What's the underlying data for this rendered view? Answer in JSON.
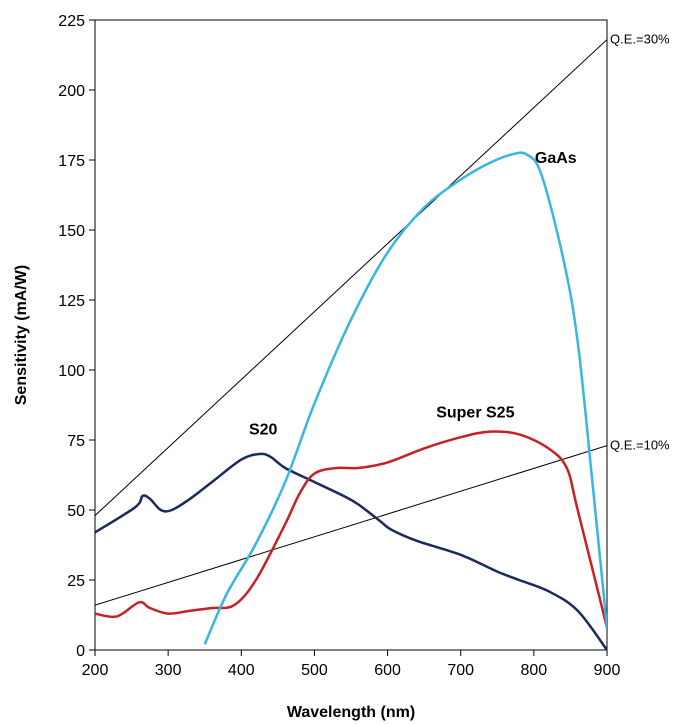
{
  "chart_data": {
    "type": "line",
    "title": "",
    "xlabel": "Wavelength (nm)",
    "ylabel": "Sensitivity (mA/W)",
    "xlim": [
      200,
      900
    ],
    "ylim": [
      0,
      225
    ],
    "xticks": [
      200,
      300,
      400,
      500,
      600,
      700,
      800,
      900
    ],
    "yticks": [
      0,
      25,
      50,
      75,
      100,
      125,
      150,
      175,
      200,
      225
    ],
    "grid": false,
    "legend": "none",
    "series": [
      {
        "name": "S20",
        "color": "#1b2a5c",
        "x": [
          200,
          255,
          265,
          275,
          290,
          305,
          330,
          360,
          400,
          425,
          440,
          460,
          500,
          540,
          560,
          590,
          605,
          640,
          700,
          750,
          780,
          820,
          860,
          900
        ],
        "y": [
          42,
          51,
          55,
          54,
          50,
          50,
          54,
          60,
          68,
          70,
          69,
          65,
          60,
          55,
          52,
          46,
          43,
          39,
          34,
          28,
          25,
          21,
          14,
          0
        ]
      },
      {
        "name": "Super S25",
        "color": "#c72027",
        "x": [
          200,
          230,
          260,
          275,
          300,
          330,
          360,
          390,
          420,
          460,
          480,
          500,
          530,
          560,
          600,
          650,
          700,
          740,
          780,
          820,
          845,
          860,
          900
        ],
        "y": [
          13,
          12,
          17,
          15,
          13,
          14,
          15,
          16,
          25,
          45,
          56,
          63,
          65,
          65,
          67,
          72,
          76,
          78,
          77,
          72,
          65,
          50,
          8
        ]
      },
      {
        "name": "GaAs",
        "color": "#38b6e1",
        "x": [
          350,
          380,
          420,
          460,
          500,
          550,
          600,
          650,
          700,
          740,
          770,
          790,
          810,
          840,
          860,
          880,
          900
        ],
        "y": [
          2,
          20,
          38,
          60,
          88,
          118,
          142,
          158,
          168,
          174,
          177,
          177,
          170,
          140,
          110,
          60,
          8
        ]
      }
    ],
    "reference_lines": [
      {
        "label": "Q.E.=30%",
        "color": "#000000",
        "x": [
          200,
          900
        ],
        "y": [
          48,
          218
        ]
      },
      {
        "label": "Q.E.=10%",
        "color": "#000000",
        "x": [
          200,
          900
        ],
        "y": [
          16,
          73
        ]
      }
    ]
  }
}
